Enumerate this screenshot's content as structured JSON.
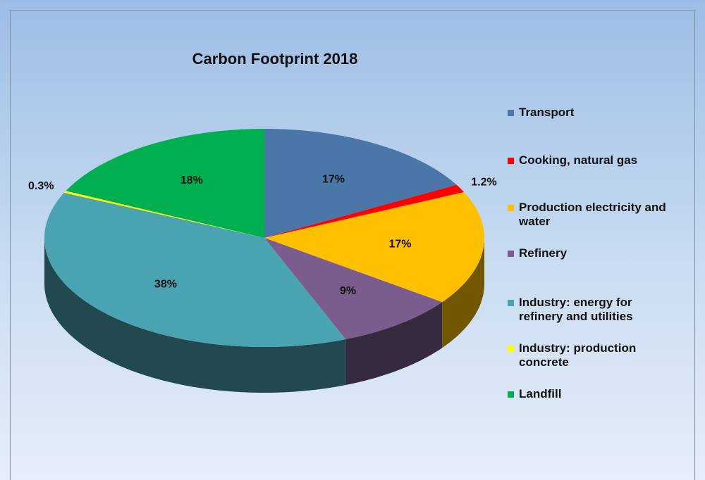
{
  "chart_data": {
    "type": "pie",
    "title": "Carbon Footprint 2018",
    "categories": [
      "Transport",
      "Cooking, natural gas",
      "Production electricity and water",
      "Refinery",
      "Industry: energy for refinery and utilities",
      "Industry: production concrete",
      "Landfill"
    ],
    "values": [
      17,
      1.2,
      17,
      9,
      38,
      0.3,
      18
    ],
    "value_labels": [
      "17%",
      "1.2%",
      "17%",
      "9%",
      "38%",
      "0.3%",
      "18%"
    ],
    "colors": [
      "#4a76a8",
      "#ff0000",
      "#ffc000",
      "#7a5c8e",
      "#4aa3b0",
      "#ffff00",
      "#00b050"
    ],
    "legend": "right"
  }
}
